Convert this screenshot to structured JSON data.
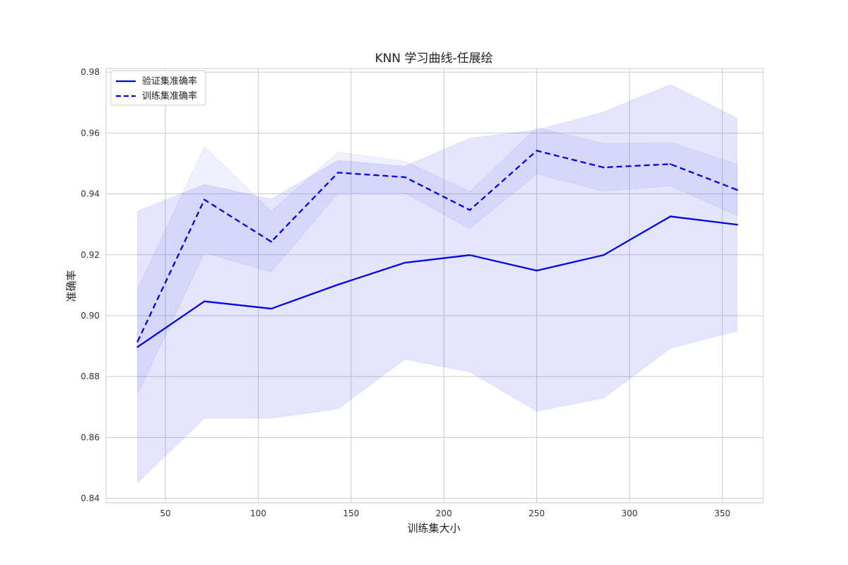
{
  "chart_data": {
    "type": "line",
    "title": "KNN 学习曲线-任展绘",
    "xlabel": "训练集大小",
    "ylabel": "准确率",
    "xlim": [
      18,
      372
    ],
    "ylim": [
      0.8385,
      0.9812
    ],
    "xticks": [
      50,
      100,
      150,
      200,
      250,
      300,
      350
    ],
    "yticks": [
      0.84,
      0.86,
      0.88,
      0.9,
      0.92,
      0.94,
      0.96,
      0.98
    ],
    "ytick_labels": [
      "0.84",
      "0.86",
      "0.88",
      "0.90",
      "0.92",
      "0.94",
      "0.96",
      "0.98"
    ],
    "grid": true,
    "legend_position": "top-left",
    "x": [
      35,
      71,
      107,
      143,
      179,
      214,
      250,
      286,
      322,
      358
    ],
    "series": [
      {
        "name": "验证集准确率",
        "style": "solid",
        "color": "#0000ee",
        "values": [
          0.8897,
          0.9047,
          0.9023,
          0.9102,
          0.9174,
          0.9199,
          0.9148,
          0.9199,
          0.9326,
          0.9299
        ],
        "band_lower": [
          0.8451,
          0.8663,
          0.8663,
          0.8694,
          0.8857,
          0.8815,
          0.8686,
          0.8729,
          0.8893,
          0.895
        ],
        "band_upper": [
          0.9343,
          0.9431,
          0.9383,
          0.951,
          0.9491,
          0.9583,
          0.961,
          0.9669,
          0.9759,
          0.9648
        ]
      },
      {
        "name": "训练集准确率",
        "style": "dashed",
        "color": "#0000ee",
        "values": [
          0.8915,
          0.9381,
          0.9243,
          0.947,
          0.9455,
          0.9347,
          0.9542,
          0.9487,
          0.9498,
          0.9413
        ],
        "band_lower": [
          0.8744,
          0.9207,
          0.9144,
          0.9403,
          0.9403,
          0.9287,
          0.9466,
          0.9409,
          0.9427,
          0.9329
        ],
        "band_upper": [
          0.9086,
          0.9555,
          0.9342,
          0.9537,
          0.9507,
          0.9407,
          0.9618,
          0.9565,
          0.9569,
          0.9497
        ]
      }
    ]
  }
}
